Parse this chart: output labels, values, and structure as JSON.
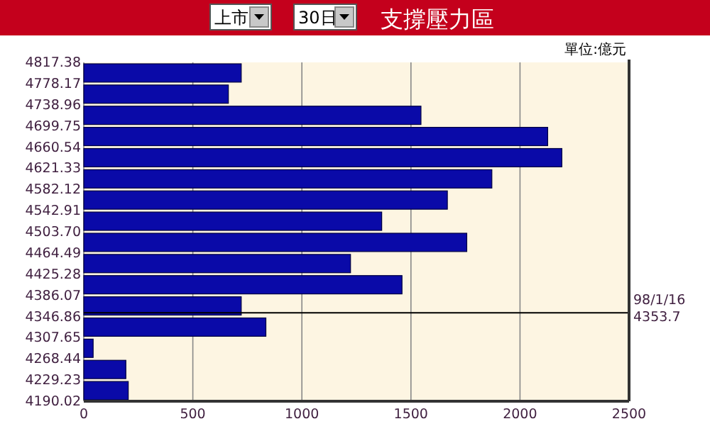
{
  "chart_data": {
    "type": "histogram",
    "orientation": "horizontal",
    "title": "支撐壓力區",
    "annotations": [
      "上市",
      "30日",
      "單位:億元"
    ],
    "bins": [
      4190.02,
      4229.23,
      4268.44,
      4307.65,
      4346.86,
      4386.07,
      4425.28,
      4464.49,
      4503.7,
      4542.91,
      4582.12,
      4621.33,
      4660.54,
      4699.75,
      4738.96,
      4778.17,
      4817.38
    ],
    "values": [
      204,
      193,
      43,
      835,
      722,
      1459,
      1223,
      1756,
      1366,
      1667,
      1871,
      2192,
      2127,
      1546,
      663,
      722
    ],
    "color": "#0a0aa8",
    "xlim": [
      0,
      2500
    ],
    "xticks": [
      0,
      500,
      1000,
      1500,
      2000,
      2500
    ],
    "ylim": [
      4190.02,
      4817.38
    ],
    "yticks": [
      {
        "value": 4190.02,
        "label": "4190.02"
      },
      {
        "value": 4229.23,
        "label": "4229.23"
      },
      {
        "value": 4268.44,
        "label": "4268.44"
      },
      {
        "value": 4307.65,
        "label": "4307.65"
      },
      {
        "value": 4346.86,
        "label": "4346.86"
      },
      {
        "value": 4386.07,
        "label": "4386.07"
      },
      {
        "value": 4425.28,
        "label": "4425.28"
      },
      {
        "value": 4464.49,
        "label": "4464.49"
      },
      {
        "value": 4503.7,
        "label": "4503.70"
      },
      {
        "value": 4542.91,
        "label": "4542.91"
      },
      {
        "value": 4582.12,
        "label": "4582.12"
      },
      {
        "value": 4621.33,
        "label": "4621.33"
      },
      {
        "value": 4660.54,
        "label": "4660.54"
      },
      {
        "value": 4699.75,
        "label": "4699.75"
      },
      {
        "value": 4738.96,
        "label": "4738.96"
      },
      {
        "value": 4778.17,
        "label": "4778.17"
      },
      {
        "value": 4817.38,
        "label": "4817.38"
      }
    ],
    "grid": "x",
    "ref_lines": [
      {
        "axis": "y",
        "value": 4353.7,
        "label": "98/1/16\n4353.7",
        "color": "#000000"
      }
    ]
  }
}
